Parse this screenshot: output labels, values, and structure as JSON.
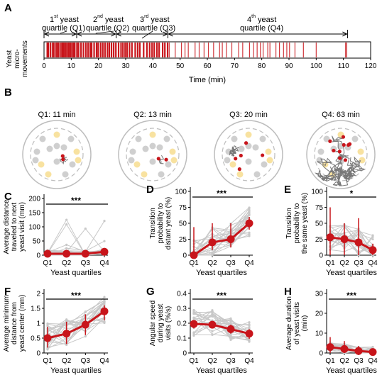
{
  "panels": {
    "A": {
      "letter": "A",
      "ylabel_lines": [
        "Yeast",
        "micro-",
        "movements"
      ],
      "xlabel": "Time (min)",
      "xticks": [
        "0",
        "10",
        "20",
        "30",
        "40",
        "50",
        "60",
        "70",
        "80",
        "90",
        "100",
        "110",
        "120"
      ],
      "quartile_labels": [
        {
          "num": "1",
          "sup": "st",
          "word": " yeast",
          "q": "quartile (Q1)"
        },
        {
          "num": "2",
          "sup": "nd",
          "word": " yeast",
          "q": "quartile (Q2)"
        },
        {
          "num": "3",
          "sup": "rd",
          "word": " yeast",
          "q": "quartile (Q3)"
        },
        {
          "num": "4",
          "sup": "th",
          "word": " yeast",
          "q": "quartile (Q4)"
        }
      ]
    },
    "B": {
      "letter": "B",
      "titles": [
        "Q1: 11 min",
        "Q2: 13 min",
        "Q3: 20 min",
        "Q4: 63 min"
      ]
    },
    "C": {
      "letter": "C",
      "ylabel_lines": [
        "Average distance",
        "traveled to next",
        "yeast visit (mm)"
      ],
      "yticks": [
        "0",
        "50",
        "100",
        "150",
        "200"
      ],
      "sig": "***"
    },
    "D": {
      "letter": "D",
      "ylabel_lines": [
        "Transition",
        "probability to",
        "distant yeast (%)"
      ],
      "yticks": [
        "0",
        "25",
        "50",
        "75",
        "100"
      ],
      "sig": "***"
    },
    "E": {
      "letter": "E",
      "ylabel_lines": [
        "Transition",
        "probability to",
        "the same yeast (%)"
      ],
      "yticks": [
        "0",
        "25",
        "50",
        "75",
        "100"
      ],
      "sig": "*"
    },
    "F": {
      "letter": "F",
      "ylabel_lines": [
        "Average minimum",
        "distance from",
        "yeast center (mm)"
      ],
      "yticks": [
        "0",
        "0.5",
        "1",
        "1.5",
        "2"
      ],
      "sig": "***"
    },
    "G": {
      "letter": "G",
      "ylabel_lines": [
        "Angular speed",
        "during yeast",
        "visits (%/s)"
      ],
      "yticks": [
        "0",
        "0.1",
        "0.2",
        "0.3",
        "0.4"
      ],
      "sig": "***"
    },
    "H": {
      "letter": "H",
      "ylabel_lines": [
        "Average duration",
        "of yeast visits",
        "(min)"
      ],
      "yticks": [
        "0",
        "10",
        "20",
        "30"
      ],
      "sig": "***"
    }
  },
  "xtick_labels": [
    "Q1",
    "Q2",
    "Q3",
    "Q4"
  ],
  "xlabel": "Yeast quartiles",
  "colors": {
    "accent": "#c8151b",
    "grey": "#c8c8c8",
    "yeast": "#f8e2a0",
    "dot": "#cfcfcf"
  },
  "chart_data": [
    {
      "id": "A",
      "type": "raster",
      "xlabel": "Time (min)",
      "xlim": [
        0,
        120
      ],
      "quartile_boundaries": [
        0,
        12,
        26.5,
        45.5,
        111.5
      ],
      "events": [
        1.2,
        1.6,
        2.4,
        3.2,
        3.6,
        4.4,
        5.0,
        5.4,
        6.2,
        6.8,
        7.3,
        7.9,
        8.5,
        9.1,
        9.7,
        10.3,
        10.9,
        11.3,
        12.1,
        12.7,
        13.6,
        14.5,
        15.4,
        16.2,
        17.0,
        17.5,
        18.4,
        19.3,
        19.9,
        20.8,
        21.6,
        22.4,
        23.3,
        24.0,
        24.8,
        25.6,
        26.4,
        27.4,
        28.3,
        29.0,
        29.8,
        30.5,
        31.4,
        32.3,
        33.5,
        34.4,
        35.2,
        36.6,
        37.8,
        38.8,
        39.7,
        40.5,
        41.5,
        42.3,
        43.6,
        44.4,
        45.4,
        46.0,
        48.2,
        50.5,
        51.8,
        53.0,
        55.5,
        57.0,
        58.8,
        60.4,
        62.3,
        64.5,
        65.5,
        67.0,
        69.0,
        71.5,
        73.0,
        75.5,
        77.0,
        78.3,
        79.5,
        80.5,
        82.2,
        83.0,
        85.2,
        86.5,
        88.0,
        89.2,
        90.2,
        92.2,
        95.3,
        100.0,
        110.8,
        111.2
      ]
    },
    {
      "id": "C",
      "type": "line",
      "x": [
        "Q1",
        "Q2",
        "Q3",
        "Q4"
      ],
      "mean": [
        5,
        5,
        5,
        12
      ],
      "err": [
        [
          3,
          8
        ],
        [
          3,
          10
        ],
        [
          3,
          10
        ],
        [
          6,
          22
        ]
      ],
      "ylim": [
        0,
        200
      ]
    },
    {
      "id": "D",
      "type": "line",
      "x": [
        "Q1",
        "Q2",
        "Q3",
        "Q4"
      ],
      "mean": [
        0,
        20,
        25,
        50
      ],
      "err": [
        [
          0,
          44
        ],
        [
          8,
          50
        ],
        [
          12,
          50
        ],
        [
          40,
          60
        ]
      ],
      "ylim": [
        0,
        100
      ]
    },
    {
      "id": "E",
      "type": "line",
      "x": [
        "Q1",
        "Q2",
        "Q3",
        "Q4"
      ],
      "mean": [
        28,
        25,
        20,
        8
      ],
      "err": [
        [
          0,
          75
        ],
        [
          0,
          50
        ],
        [
          0,
          58
        ],
        [
          0,
          18
        ]
      ],
      "ylim": [
        0,
        100
      ]
    },
    {
      "id": "F",
      "type": "line",
      "x": [
        "Q1",
        "Q2",
        "Q3",
        "Q4"
      ],
      "mean": [
        0.5,
        0.65,
        0.95,
        1.4
      ],
      "err": [
        [
          0.18,
          0.88
        ],
        [
          0.3,
          1.05
        ],
        [
          0.6,
          1.3
        ],
        [
          1.1,
          1.6
        ]
      ],
      "ylim": [
        0,
        2
      ]
    },
    {
      "id": "G",
      "type": "line",
      "x": [
        "Q1",
        "Q2",
        "Q3",
        "Q4"
      ],
      "mean": [
        0.195,
        0.19,
        0.16,
        0.13
      ],
      "err": [
        [
          0.165,
          0.22
        ],
        [
          0.165,
          0.215
        ],
        [
          0.13,
          0.19
        ],
        [
          0.095,
          0.16
        ]
      ],
      "ylim": [
        0,
        0.4
      ]
    },
    {
      "id": "H",
      "type": "line",
      "x": [
        "Q1",
        "Q2",
        "Q3",
        "Q4"
      ],
      "mean": [
        3.0,
        2.0,
        1.0,
        0.5
      ],
      "err": [
        [
          0,
          8
        ],
        [
          0,
          6
        ],
        [
          0,
          3.5
        ],
        [
          0,
          1.5
        ]
      ],
      "ylim": [
        0,
        30
      ]
    }
  ]
}
